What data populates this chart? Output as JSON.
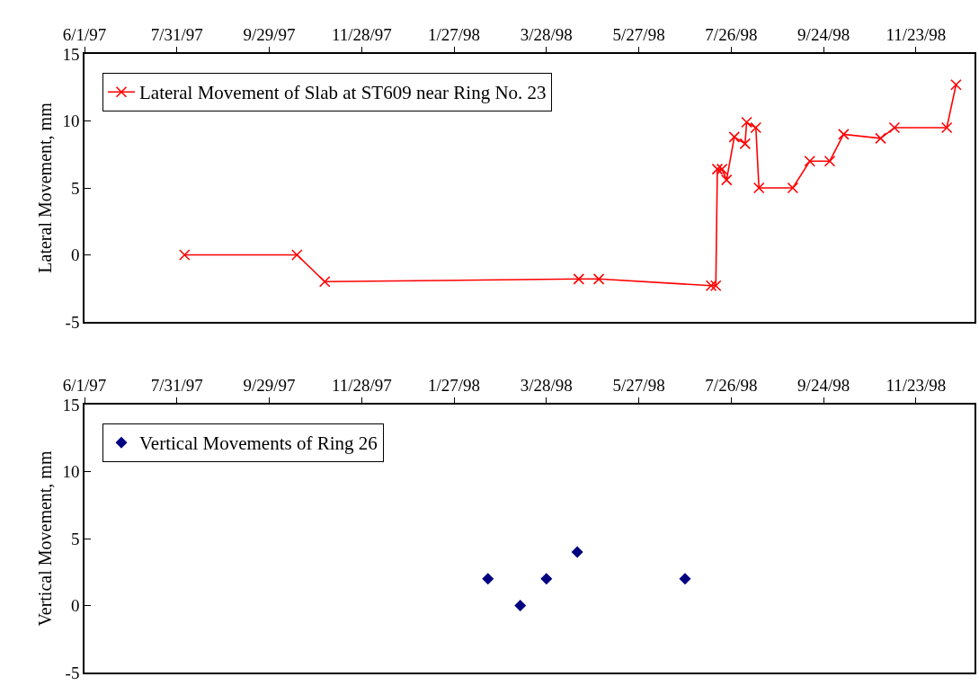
{
  "chart_data": [
    {
      "type": "line",
      "ylabel": "Lateral Movement, mm",
      "marker": "cross",
      "line_style": "solid",
      "legend": "top left",
      "grid": false,
      "xlim": [
        "1997-06-01",
        "1998-12-31"
      ],
      "xticks": [
        {
          "value": "1997-06-01",
          "label": "6/1/97"
        },
        {
          "value": "1997-07-31",
          "label": "7/31/97"
        },
        {
          "value": "1997-09-29",
          "label": "9/29/97"
        },
        {
          "value": "1997-11-28",
          "label": "11/28/97"
        },
        {
          "value": "1998-01-27",
          "label": "1/27/98"
        },
        {
          "value": "1998-03-28",
          "label": "3/28/98"
        },
        {
          "value": "1998-05-27",
          "label": "5/27/98"
        },
        {
          "value": "1998-07-26",
          "label": "7/26/98"
        },
        {
          "value": "1998-09-24",
          "label": "9/24/98"
        },
        {
          "value": "1998-11-23",
          "label": "11/23/98"
        }
      ],
      "ylim": [
        -5,
        15
      ],
      "yticks": [
        -5,
        0,
        5,
        10,
        15
      ],
      "x": [
        "1997-08-05",
        "1997-10-17",
        "1997-11-04",
        "1998-04-18",
        "1998-05-01",
        "1998-07-13",
        "1998-07-16",
        "1998-07-17",
        "1998-07-20",
        "1998-07-23",
        "1998-07-28",
        "1998-08-04",
        "1998-08-05",
        "1998-08-11",
        "1998-08-13",
        "1998-09-04",
        "1998-09-15",
        "1998-09-28",
        "1998-10-07",
        "1998-10-31",
        "1998-11-09",
        "1998-12-13",
        "1998-12-19"
      ],
      "series": [
        {
          "name": "Lateral Movement of Slab at ST609 near Ring No. 23",
          "color": "#ff0000",
          "values": [
            0,
            0,
            -2,
            -1.8,
            -1.8,
            -2.3,
            -2.3,
            6.4,
            6.4,
            5.6,
            8.8,
            8.3,
            9.9,
            9.5,
            5,
            5,
            7,
            7,
            9,
            8.7,
            9.5,
            9.5,
            12.7
          ]
        }
      ]
    },
    {
      "type": "scatter",
      "ylabel": "Vertical Movement, mm",
      "marker": "diamond",
      "legend": "top left",
      "grid": false,
      "xlim": [
        "1997-06-01",
        "1998-12-31"
      ],
      "xticks": [
        {
          "value": "1997-06-01",
          "label": "6/1/97"
        },
        {
          "value": "1997-07-31",
          "label": "7/31/97"
        },
        {
          "value": "1997-09-29",
          "label": "9/29/97"
        },
        {
          "value": "1997-11-28",
          "label": "11/28/97"
        },
        {
          "value": "1998-01-27",
          "label": "1/27/98"
        },
        {
          "value": "1998-03-28",
          "label": "3/28/98"
        },
        {
          "value": "1998-05-27",
          "label": "5/27/98"
        },
        {
          "value": "1998-07-26",
          "label": "7/26/98"
        },
        {
          "value": "1998-09-24",
          "label": "9/24/98"
        },
        {
          "value": "1998-11-23",
          "label": "11/23/98"
        }
      ],
      "ylim": [
        -5,
        15
      ],
      "yticks": [
        -5,
        0,
        5,
        10,
        15
      ],
      "x": [
        "1998-02-18",
        "1998-03-11",
        "1998-03-28",
        "1998-04-17",
        "1998-06-26"
      ],
      "series": [
        {
          "name": "Vertical Movements of Ring 26",
          "color": "#000080",
          "values": [
            2,
            0,
            2,
            4,
            2
          ]
        }
      ]
    }
  ]
}
